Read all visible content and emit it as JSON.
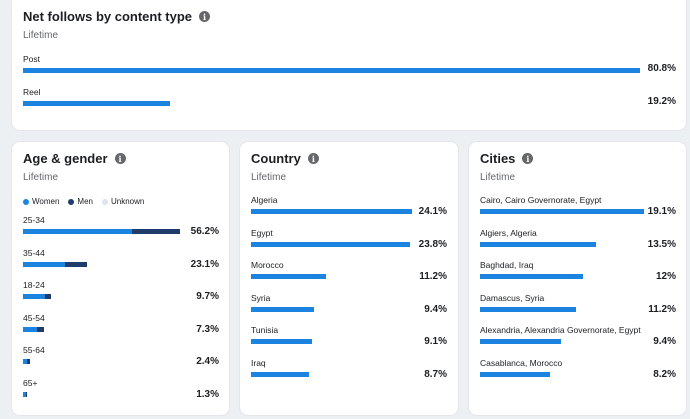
{
  "colors": {
    "women": "#1b84e0",
    "men": "#1f3c6a",
    "unknown": "#dde4ee",
    "bar": "#1b84e0"
  },
  "content_type": {
    "title": "Net follows by content type",
    "subtitle": "Lifetime",
    "rows": [
      {
        "label": "Post",
        "pct": "80.8%",
        "fraction": 0.808
      },
      {
        "label": "Reel",
        "pct": "19.2%",
        "fraction": 0.192
      }
    ]
  },
  "age_gender": {
    "title": "Age & gender",
    "subtitle": "Lifetime",
    "legend": {
      "women": "Women",
      "men": "Men",
      "unknown": "Unknown"
    },
    "rows": [
      {
        "label": "25-34",
        "pct": "56.2%",
        "women": 0.39,
        "men": 0.17
      },
      {
        "label": "35-44",
        "pct": "23.1%",
        "women": 0.15,
        "men": 0.08
      },
      {
        "label": "18-24",
        "pct": "9.7%",
        "women": 0.08,
        "men": 0.02
      },
      {
        "label": "45-54",
        "pct": "7.3%",
        "women": 0.05,
        "men": 0.025
      },
      {
        "label": "55-64",
        "pct": "2.4%",
        "women": 0.015,
        "men": 0.009
      },
      {
        "label": "65+",
        "pct": "1.3%",
        "women": 0.009,
        "men": 0.004
      }
    ]
  },
  "country": {
    "title": "Country",
    "subtitle": "Lifetime",
    "rows": [
      {
        "label": "Algeria",
        "pct": "24.1%",
        "fraction": 0.241
      },
      {
        "label": "Egypt",
        "pct": "23.8%",
        "fraction": 0.238
      },
      {
        "label": "Morocco",
        "pct": "11.2%",
        "fraction": 0.112
      },
      {
        "label": "Syria",
        "pct": "9.4%",
        "fraction": 0.094
      },
      {
        "label": "Tunisia",
        "pct": "9.1%",
        "fraction": 0.091
      },
      {
        "label": "Iraq",
        "pct": "8.7%",
        "fraction": 0.087
      }
    ]
  },
  "cities": {
    "title": "Cities",
    "subtitle": "Lifetime",
    "rows": [
      {
        "label": "Cairo, Cairo Governorate, Egypt",
        "pct": "19.1%",
        "fraction": 0.191
      },
      {
        "label": "Algiers, Algeria",
        "pct": "13.5%",
        "fraction": 0.135
      },
      {
        "label": "Baghdad, Iraq",
        "pct": "12%",
        "fraction": 0.12
      },
      {
        "label": "Damascus, Syria",
        "pct": "11.2%",
        "fraction": 0.112
      },
      {
        "label": "Alexandria, Alexandria Governorate, Egypt",
        "pct": "9.4%",
        "fraction": 0.094
      },
      {
        "label": "Casablanca, Morocco",
        "pct": "8.2%",
        "fraction": 0.082
      }
    ]
  }
}
